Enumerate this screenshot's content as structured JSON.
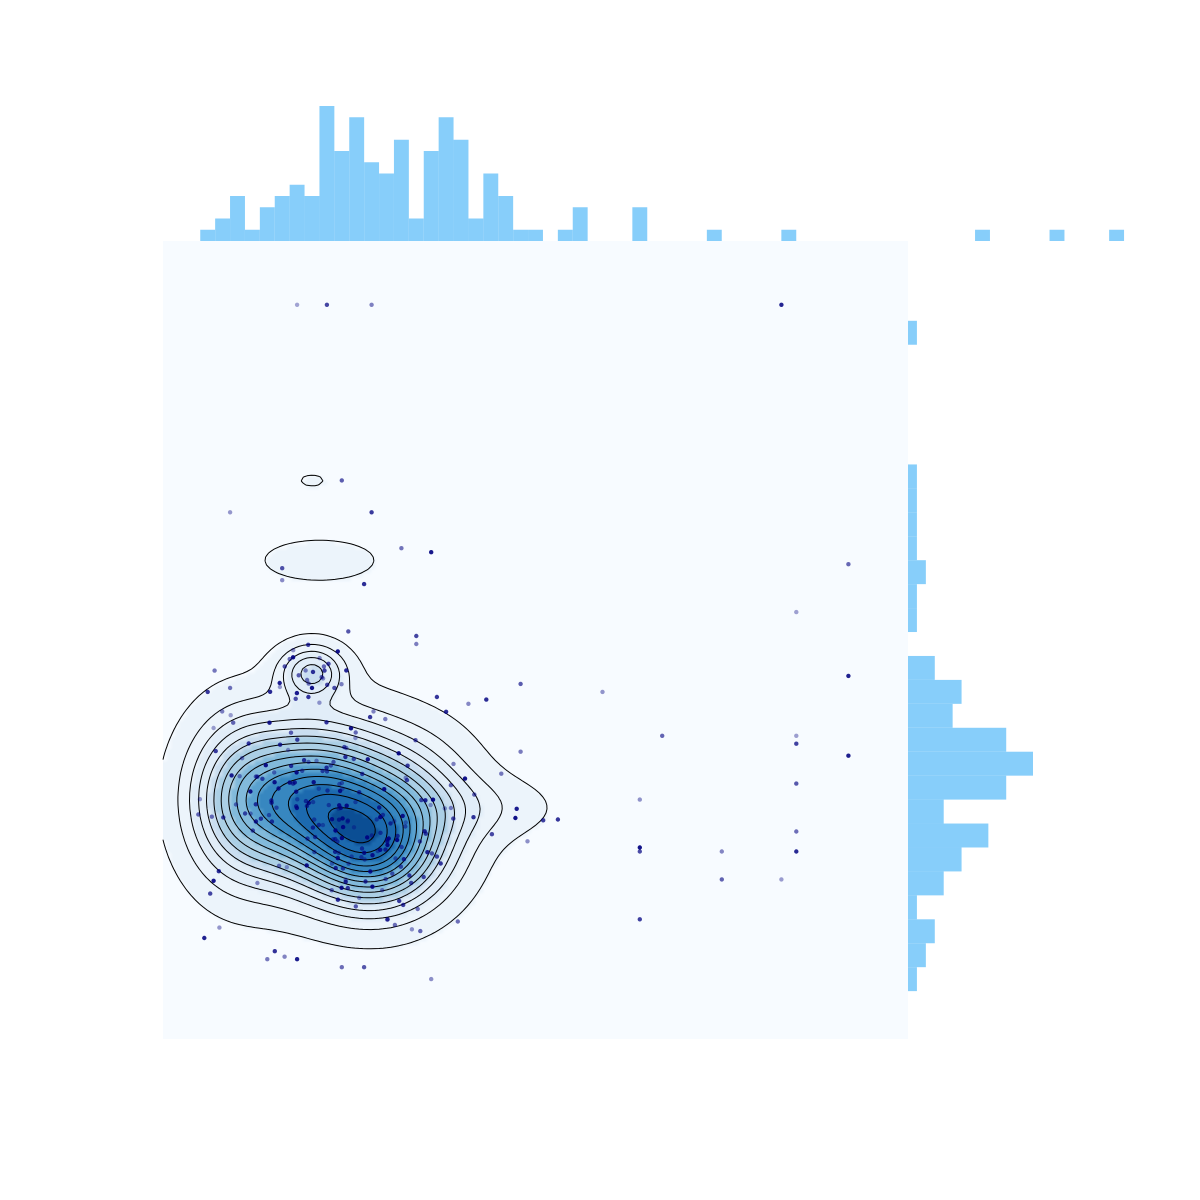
{
  "chart_data": {
    "type": "scatter",
    "kind": "joint plot: bivariate KDE contours with scatter points and marginal histograms",
    "title": "",
    "xlabel": "",
    "ylabel": "",
    "axes_visible": false,
    "grid": false,
    "xlim": [
      0,
      1
    ],
    "ylim": [
      0,
      1
    ],
    "colors": {
      "plot_background": "#f7fbff",
      "histogram": "#87cefa",
      "points": "#000080",
      "contour_lines": "#000000",
      "kde_levels": [
        "#ecf4fb",
        "#e1edf8",
        "#cadef0",
        "#abcfe5",
        "#82badb",
        "#59a1cf",
        "#3787c0",
        "#1c6aaf",
        "#0b4e94"
      ]
    },
    "x_histogram": {
      "bin_start": 0.05,
      "bin_width": 0.02,
      "counts": [
        1,
        2,
        4,
        1,
        3,
        4,
        5,
        4,
        12,
        8,
        11,
        7,
        6,
        9,
        2,
        8,
        11,
        9,
        2,
        6,
        4,
        1,
        1,
        0,
        1,
        3,
        0,
        0,
        0,
        3,
        0,
        0,
        0,
        0,
        1,
        0,
        0,
        0,
        0,
        1,
        0,
        0,
        0,
        0,
        0,
        0,
        0,
        0,
        0,
        0,
        0,
        0,
        1,
        0,
        0,
        0,
        0,
        1,
        0,
        0,
        0,
        1,
        0,
        0,
        0,
        0,
        0,
        0
      ]
    },
    "y_histogram": {
      "bin_start": 0.06,
      "bin_width": 0.03,
      "counts": [
        1,
        2,
        3,
        1,
        4,
        6,
        9,
        4,
        11,
        14,
        11,
        5,
        6,
        3,
        0,
        1,
        1,
        2,
        1,
        1,
        1,
        1,
        0,
        0,
        0,
        0,
        0,
        1
      ]
    },
    "kde_modes": [
      {
        "x": 0.2,
        "y": 0.3,
        "weight": 1.0
      },
      {
        "x": 0.285,
        "y": 0.235,
        "weight": 0.75
      },
      {
        "x": 0.2,
        "y": 0.46,
        "weight": 0.4
      },
      {
        "x": 0.1,
        "y": 0.3,
        "weight": 0.35
      },
      {
        "x": 0.33,
        "y": 0.3,
        "weight": 0.3
      },
      {
        "x": 0.42,
        "y": 0.29,
        "weight": 0.1
      },
      {
        "x": 0.21,
        "y": 0.6,
        "weight": 0.07
      },
      {
        "x": 0.2,
        "y": 0.7,
        "weight": 0.05
      },
      {
        "x": 0.9,
        "y": 0.32,
        "weight": 0.04
      }
    ],
    "points": [
      {
        "x": 0.18,
        "y": 0.92
      },
      {
        "x": 0.22,
        "y": 0.92
      },
      {
        "x": 0.28,
        "y": 0.92
      },
      {
        "x": 0.83,
        "y": 0.92
      },
      {
        "x": 0.24,
        "y": 0.7
      },
      {
        "x": 0.09,
        "y": 0.66
      },
      {
        "x": 0.28,
        "y": 0.66
      },
      {
        "x": 0.32,
        "y": 0.615
      },
      {
        "x": 0.36,
        "y": 0.61
      },
      {
        "x": 0.16,
        "y": 0.59
      },
      {
        "x": 0.16,
        "y": 0.575
      },
      {
        "x": 0.27,
        "y": 0.57
      },
      {
        "x": 0.92,
        "y": 0.595
      },
      {
        "x": 0.85,
        "y": 0.535
      },
      {
        "x": 0.34,
        "y": 0.505
      },
      {
        "x": 0.34,
        "y": 0.495
      },
      {
        "x": 0.92,
        "y": 0.455
      },
      {
        "x": 0.48,
        "y": 0.445
      },
      {
        "x": 0.59,
        "y": 0.435
      },
      {
        "x": 0.06,
        "y": 0.435
      },
      {
        "x": 0.09,
        "y": 0.44
      },
      {
        "x": 0.2,
        "y": 0.44
      },
      {
        "x": 0.23,
        "y": 0.44
      },
      {
        "x": 0.41,
        "y": 0.42
      },
      {
        "x": 0.38,
        "y": 0.41
      },
      {
        "x": 0.67,
        "y": 0.38
      },
      {
        "x": 0.85,
        "y": 0.38
      },
      {
        "x": 0.85,
        "y": 0.37
      },
      {
        "x": 0.48,
        "y": 0.36
      },
      {
        "x": 0.92,
        "y": 0.355
      },
      {
        "x": 0.85,
        "y": 0.32
      },
      {
        "x": 0.64,
        "y": 0.3
      },
      {
        "x": 0.53,
        "y": 0.275
      },
      {
        "x": 0.85,
        "y": 0.26
      },
      {
        "x": 0.64,
        "y": 0.24
      },
      {
        "x": 0.64,
        "y": 0.235
      },
      {
        "x": 0.75,
        "y": 0.235
      },
      {
        "x": 0.85,
        "y": 0.235
      },
      {
        "x": 0.75,
        "y": 0.2
      },
      {
        "x": 0.83,
        "y": 0.2
      },
      {
        "x": 0.64,
        "y": 0.15
      },
      {
        "x": 0.14,
        "y": 0.1
      },
      {
        "x": 0.18,
        "y": 0.1
      },
      {
        "x": 0.27,
        "y": 0.09
      },
      {
        "x": 0.36,
        "y": 0.075
      },
      {
        "x": 0.15,
        "y": 0.11
      },
      {
        "x": 0.24,
        "y": 0.09
      }
    ]
  }
}
